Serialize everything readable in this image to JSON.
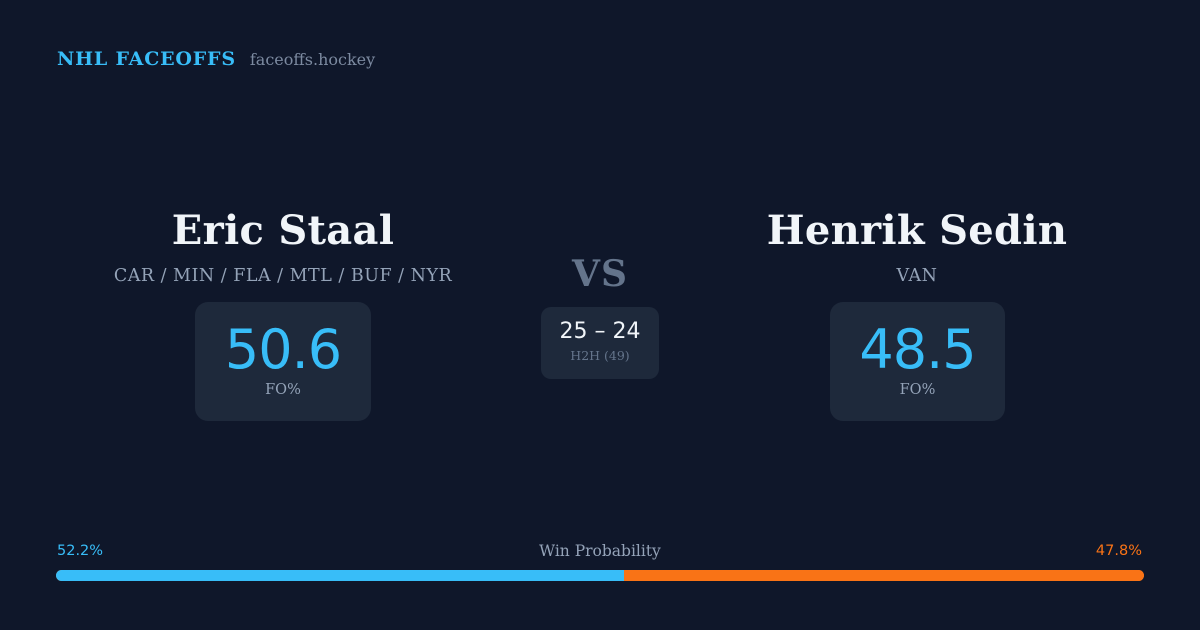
{
  "brand": {
    "title": "NHL FACEOFFS",
    "domain": "faceoffs.hockey"
  },
  "colors": {
    "background": "#0f172a",
    "card": "#1e293b",
    "accent_left": "#38bdf8",
    "accent_right": "#f97316"
  },
  "player_left": {
    "name": "Eric Staal",
    "teams": "CAR / MIN / FLA / MTL / BUF / NYR",
    "fo_pct": "50.6",
    "fo_label": "FO%"
  },
  "player_right": {
    "name": "Henrik Sedin",
    "teams": "VAN",
    "fo_pct": "48.5",
    "fo_label": "FO%"
  },
  "matchup": {
    "vs_label": "VS",
    "h2h_score": "25 – 24",
    "h2h_label": "H2H (49)"
  },
  "win_probability": {
    "title": "Win Probability",
    "left_label": "52.2%",
    "right_label": "47.8%",
    "left_fraction": 0.522,
    "right_fraction": 0.478
  }
}
